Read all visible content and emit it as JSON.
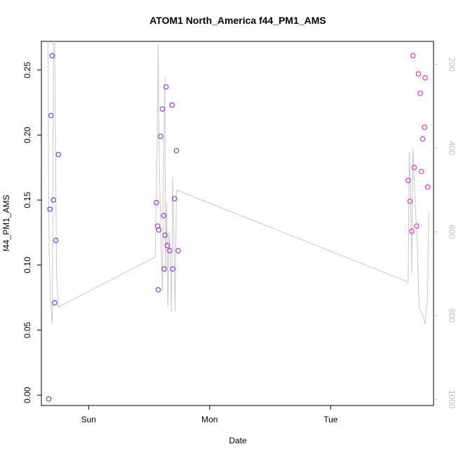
{
  "chart_data": {
    "type": "scatter",
    "title": "ATOM1 North_America f44_PM1_AMS",
    "xlabel": "Date",
    "ylabel": "f44_PM1_AMS",
    "x_axis": {
      "type": "date",
      "ticks": [
        {
          "t": 0.0,
          "label": "Sun"
        },
        {
          "t": 1.0,
          "label": "Mon"
        },
        {
          "t": 2.0,
          "label": "Tue"
        }
      ],
      "range": [
        -0.39,
        2.85
      ]
    },
    "y_axis": {
      "ticks": [
        0.0,
        0.05,
        0.1,
        0.15,
        0.2,
        0.25
      ],
      "tick_labels": [
        "0.00",
        "0.05",
        "0.10",
        "0.15",
        "0.20",
        "0.25"
      ],
      "range": [
        -0.008,
        0.272
      ]
    },
    "y2_axis": {
      "ticks": [
        200,
        400,
        600,
        800,
        1000
      ],
      "tick_labels": [
        "200",
        "400",
        "600",
        "800",
        "1000"
      ],
      "range": [
        1015,
        145
      ],
      "color": "#bdbdbd"
    },
    "grid": false,
    "legend": "none",
    "colors": {
      "line": "#c8c8c8",
      "points_start": "#6a2cf0",
      "points_end": "#ff1fc8"
    },
    "points": [
      {
        "t": -0.33,
        "y": -0.003
      },
      {
        "t": -0.32,
        "y": 0.143
      },
      {
        "t": -0.31,
        "y": 0.215
      },
      {
        "t": -0.3,
        "y": 0.261
      },
      {
        "t": -0.29,
        "y": 0.15
      },
      {
        "t": -0.28,
        "y": 0.071
      },
      {
        "t": -0.27,
        "y": 0.119
      },
      {
        "t": -0.25,
        "y": 0.185
      },
      {
        "t": 0.56,
        "y": 0.148
      },
      {
        "t": 0.57,
        "y": 0.13
      },
      {
        "t": 0.575,
        "y": 0.081
      },
      {
        "t": 0.58,
        "y": 0.127
      },
      {
        "t": 0.595,
        "y": 0.199
      },
      {
        "t": 0.61,
        "y": 0.22
      },
      {
        "t": 0.62,
        "y": 0.138
      },
      {
        "t": 0.625,
        "y": 0.097
      },
      {
        "t": 0.63,
        "y": 0.123
      },
      {
        "t": 0.64,
        "y": 0.237
      },
      {
        "t": 0.65,
        "y": 0.115
      },
      {
        "t": 0.67,
        "y": 0.111
      },
      {
        "t": 0.69,
        "y": 0.223
      },
      {
        "t": 0.695,
        "y": 0.097
      },
      {
        "t": 0.71,
        "y": 0.151
      },
      {
        "t": 0.725,
        "y": 0.188
      },
      {
        "t": 0.74,
        "y": 0.111
      },
      {
        "t": 2.64,
        "y": 0.165
      },
      {
        "t": 2.655,
        "y": 0.149
      },
      {
        "t": 2.67,
        "y": 0.126
      },
      {
        "t": 2.68,
        "y": 0.261
      },
      {
        "t": 2.69,
        "y": 0.175
      },
      {
        "t": 2.71,
        "y": 0.13
      },
      {
        "t": 2.725,
        "y": 0.247
      },
      {
        "t": 2.74,
        "y": 0.232
      },
      {
        "t": 2.75,
        "y": 0.172
      },
      {
        "t": 2.76,
        "y": 0.197
      },
      {
        "t": 2.775,
        "y": 0.206
      },
      {
        "t": 2.78,
        "y": 0.244
      },
      {
        "t": 2.8,
        "y": 0.16
      }
    ],
    "line_series": [
      {
        "t": -0.335,
        "y2": 145
      },
      {
        "t": -0.33,
        "y2": 500
      },
      {
        "t": -0.325,
        "y2": 660
      },
      {
        "t": -0.315,
        "y2": 760
      },
      {
        "t": -0.3,
        "y2": 820
      },
      {
        "t": -0.29,
        "y2": 145
      },
      {
        "t": -0.28,
        "y2": 145
      },
      {
        "t": -0.265,
        "y2": 700
      },
      {
        "t": -0.25,
        "y2": 780
      },
      {
        "t": 0.55,
        "y2": 660
      },
      {
        "t": 0.56,
        "y2": 520
      },
      {
        "t": 0.57,
        "y2": 300
      },
      {
        "t": 0.575,
        "y2": 150
      },
      {
        "t": 0.58,
        "y2": 350
      },
      {
        "t": 0.59,
        "y2": 530
      },
      {
        "t": 0.6,
        "y2": 650
      },
      {
        "t": 0.61,
        "y2": 740
      },
      {
        "t": 0.62,
        "y2": 400
      },
      {
        "t": 0.63,
        "y2": 230
      },
      {
        "t": 0.635,
        "y2": 700
      },
      {
        "t": 0.645,
        "y2": 530
      },
      {
        "t": 0.655,
        "y2": 780
      },
      {
        "t": 0.665,
        "y2": 600
      },
      {
        "t": 0.675,
        "y2": 650
      },
      {
        "t": 0.685,
        "y2": 790
      },
      {
        "t": 0.695,
        "y2": 470
      },
      {
        "t": 0.705,
        "y2": 620
      },
      {
        "t": 0.715,
        "y2": 790
      },
      {
        "t": 0.725,
        "y2": 500
      },
      {
        "t": 2.64,
        "y2": 720
      },
      {
        "t": 2.65,
        "y2": 410
      },
      {
        "t": 2.66,
        "y2": 500
      },
      {
        "t": 2.67,
        "y2": 700
      },
      {
        "t": 2.68,
        "y2": 400
      },
      {
        "t": 2.69,
        "y2": 470
      },
      {
        "t": 2.7,
        "y2": 540
      },
      {
        "t": 2.715,
        "y2": 620
      },
      {
        "t": 2.73,
        "y2": 780
      },
      {
        "t": 2.76,
        "y2": 800
      },
      {
        "t": 2.78,
        "y2": 820
      },
      {
        "t": 2.8,
        "y2": 760
      },
      {
        "t": 2.81,
        "y2": 550
      }
    ]
  }
}
